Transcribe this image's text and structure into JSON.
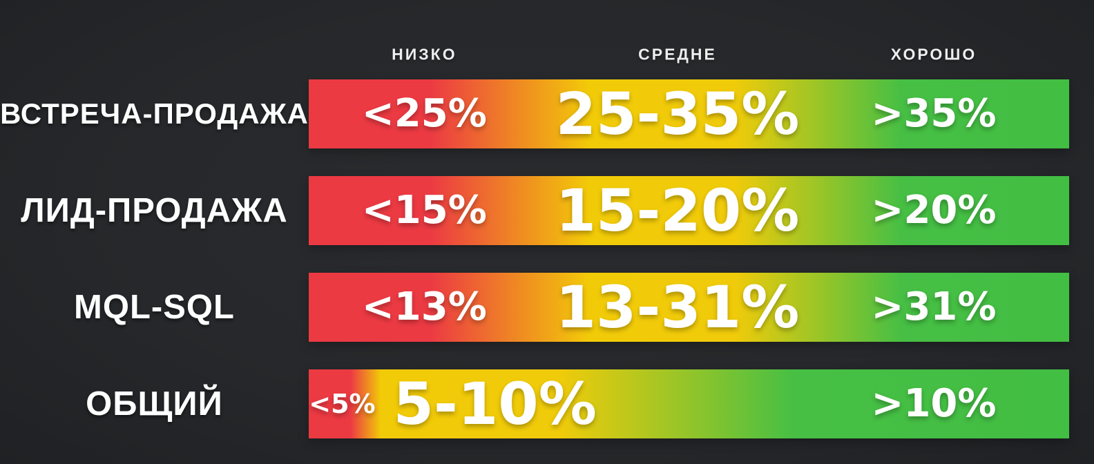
{
  "chart_data": {
    "type": "table",
    "description": "Sales conversion benchmark bands (low / average / good) per funnel stage",
    "columns": [
      "НИЗКО",
      "СРЕДНЕ",
      "ХОРОШО"
    ],
    "rows": [
      {
        "label": "ВСТРЕЧА-ПРОДАЖА",
        "low": "<25%",
        "mid": "25-35%",
        "good": ">35%"
      },
      {
        "label": "ЛИД-ПРОДАЖА",
        "low": "<15%",
        "mid": "15-20%",
        "good": ">20%"
      },
      {
        "label": "MQL-SQL",
        "low": "<13%",
        "mid": "13-31%",
        "good": ">31%"
      },
      {
        "label": "ОБЩИЙ",
        "low": "<5%",
        "mid": "5-10%",
        "good": ">10%"
      }
    ],
    "colors": {
      "low": "#EC3A43",
      "mid": "#F0CB0A",
      "good": "#42BE43",
      "background": "#26282B",
      "text": "#FFFFFF"
    },
    "layout_hints": {
      "bar_style": "horizontal red-to-yellow-to-green gradient band per row",
      "overall_row_note": "red zone much narrower on last row"
    }
  }
}
